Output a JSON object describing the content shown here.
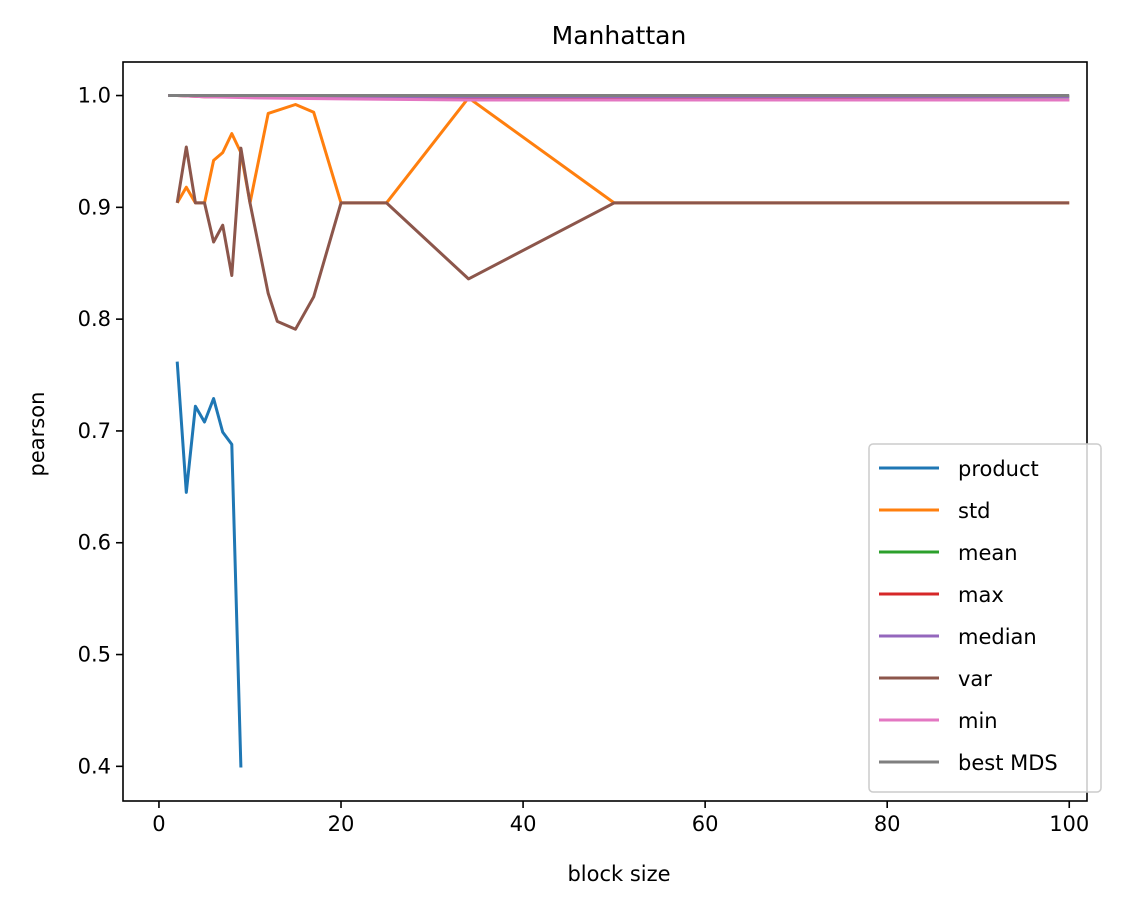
{
  "chart_data": {
    "type": "line",
    "title": "Manhattan",
    "xlabel": "block size",
    "ylabel": "pearson",
    "xlim": [
      -3.95,
      101.95
    ],
    "ylim": [
      0.369,
      1.03
    ],
    "xticks": [
      0,
      20,
      40,
      60,
      80,
      100
    ],
    "xtick_labels": [
      "0",
      "20",
      "40",
      "60",
      "80",
      "100"
    ],
    "yticks": [
      0.4,
      0.5,
      0.6,
      0.7,
      0.8,
      0.9,
      1.0
    ],
    "ytick_labels": [
      "0.4",
      "0.5",
      "0.6",
      "0.7",
      "0.8",
      "0.9",
      "1.0"
    ],
    "grid": false,
    "legend_position": "lower right",
    "series": [
      {
        "name": "product",
        "color": "#1f77b4",
        "x": [
          2,
          3,
          4,
          5,
          6,
          7,
          8,
          9
        ],
        "y": [
          0.762,
          0.645,
          0.722,
          0.708,
          0.729,
          0.699,
          0.688,
          0.399
        ]
      },
      {
        "name": "std",
        "color": "#ff7f0e",
        "x": [
          2,
          3,
          4,
          5,
          6,
          7,
          8,
          9,
          10,
          12,
          15,
          17,
          20,
          25,
          34,
          50,
          100
        ],
        "y": [
          0.904,
          0.918,
          0.904,
          0.904,
          0.942,
          0.949,
          0.966,
          0.949,
          0.904,
          0.984,
          0.992,
          0.985,
          0.904,
          0.904,
          0.998,
          0.904,
          0.904
        ]
      },
      {
        "name": "mean",
        "color": "#2ca02c",
        "x": [
          1,
          2,
          5,
          10,
          20,
          34,
          50,
          100
        ],
        "y": [
          1.0,
          1.0,
          1.0,
          0.999,
          0.999,
          0.999,
          0.999,
          0.999
        ]
      },
      {
        "name": "max",
        "color": "#d62728",
        "x": [
          1,
          2,
          5,
          10,
          20,
          34,
          50,
          100
        ],
        "y": [
          1.0,
          1.0,
          0.999,
          0.999,
          0.998,
          0.997,
          0.997,
          0.996
        ]
      },
      {
        "name": "median",
        "color": "#9467bd",
        "x": [
          1,
          2,
          5,
          10,
          20,
          34,
          50,
          100
        ],
        "y": [
          1.0,
          1.0,
          1.0,
          0.999,
          0.999,
          0.999,
          0.999,
          0.999
        ]
      },
      {
        "name": "var",
        "color": "#8c564b",
        "x": [
          2,
          3,
          4,
          5,
          6,
          7,
          8,
          9,
          10,
          12,
          13,
          15,
          17,
          20,
          25,
          34,
          50,
          100
        ],
        "y": [
          0.904,
          0.954,
          0.904,
          0.904,
          0.869,
          0.884,
          0.839,
          0.953,
          0.904,
          0.823,
          0.798,
          0.791,
          0.82,
          0.904,
          0.904,
          0.836,
          0.904,
          0.904
        ]
      },
      {
        "name": "min",
        "color": "#e377c2",
        "x": [
          1,
          2,
          5,
          10,
          20,
          34,
          50,
          100
        ],
        "y": [
          1.0,
          1.0,
          0.999,
          0.998,
          0.997,
          0.996,
          0.996,
          0.996
        ]
      },
      {
        "name": "best MDS",
        "color": "#7f7f7f",
        "x": [
          1,
          2,
          5,
          10,
          20,
          34,
          50,
          100
        ],
        "y": [
          1.0,
          1.0,
          1.0,
          1.0,
          1.0,
          1.0,
          1.0,
          1.0
        ]
      }
    ]
  }
}
